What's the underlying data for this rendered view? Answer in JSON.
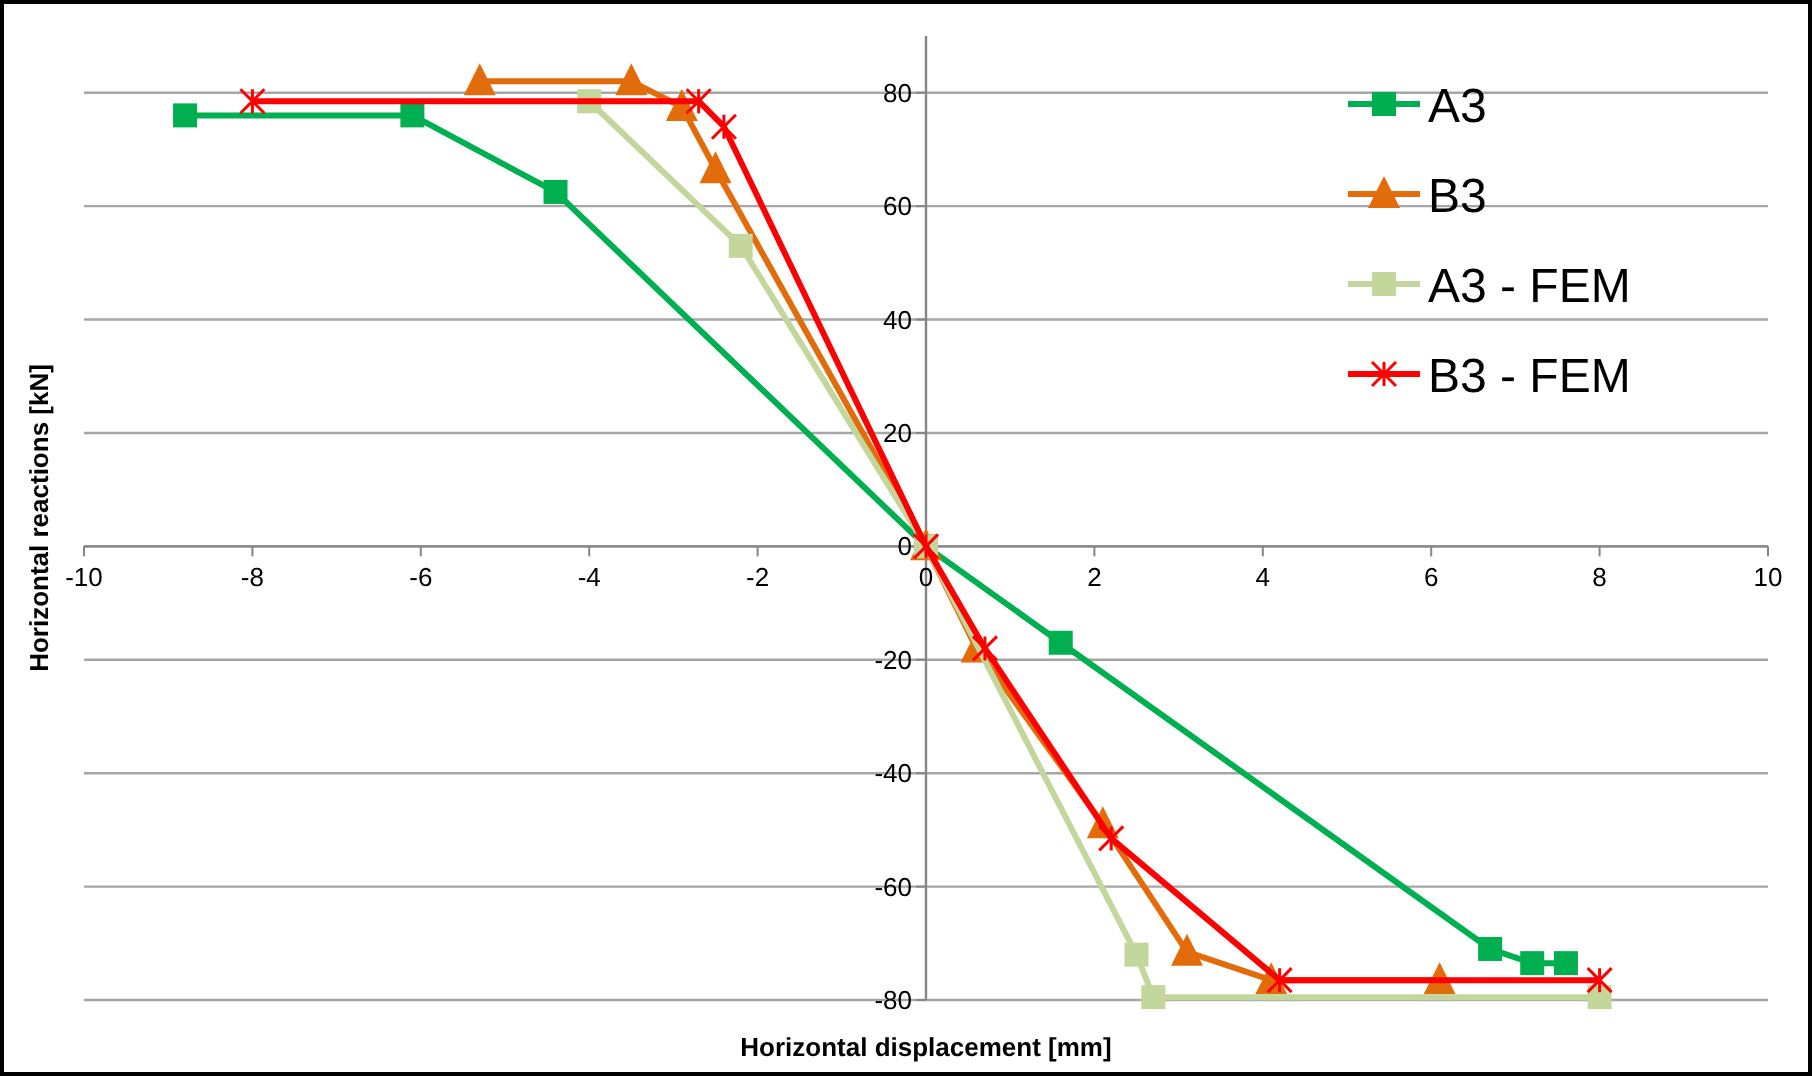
{
  "chart_data": {
    "type": "line",
    "xlabel": "Horizontal displacement [mm]",
    "ylabel": "Horizontal reactions [kN]",
    "xlim": [
      -10,
      10
    ],
    "xticks": [
      -10,
      -8,
      -6,
      -4,
      -2,
      0,
      2,
      4,
      6,
      8,
      10
    ],
    "ylim": [
      -80,
      90
    ],
    "yticks": [
      -80,
      -60,
      -40,
      -20,
      0,
      20,
      40,
      60,
      80
    ],
    "grid": "y",
    "legend": "top right",
    "line_style": "solid",
    "series": [
      {
        "name": "A3",
        "color": "#00b050",
        "marker": "square",
        "x": [
          -8.8,
          -6.1,
          -4.4,
          0,
          1.6,
          6.7,
          7.2,
          7.6
        ],
        "values": [
          76,
          76,
          62.5,
          0,
          -17,
          -71,
          -73.5,
          -73.5
        ]
      },
      {
        "name": "B3",
        "color": "#e36c0a",
        "marker": "triangle",
        "x": [
          -5.3,
          -3.5,
          -2.9,
          -2.5,
          0,
          0.6,
          2.1,
          3.1,
          4.1,
          6.1
        ],
        "values": [
          82,
          82,
          77.5,
          66.5,
          0,
          -18,
          -49,
          -71.5,
          -76.5,
          -76.5
        ]
      },
      {
        "name": "A3 - FEM",
        "color": "#c3d69b",
        "marker": "square",
        "x": [
          -4,
          -2.2,
          0,
          2.5,
          2.7,
          8
        ],
        "values": [
          78.5,
          53,
          0,
          -72,
          -79.5,
          -79.5
        ]
      },
      {
        "name": "B3 - FEM",
        "color": "#ff0000",
        "marker": "cross",
        "x": [
          -8,
          -2.7,
          -2.4,
          0,
          0.7,
          2.2,
          4.2,
          8
        ],
        "values": [
          78.5,
          78.5,
          74,
          0,
          -18,
          -51.5,
          -76.5,
          -76.5
        ]
      }
    ]
  }
}
